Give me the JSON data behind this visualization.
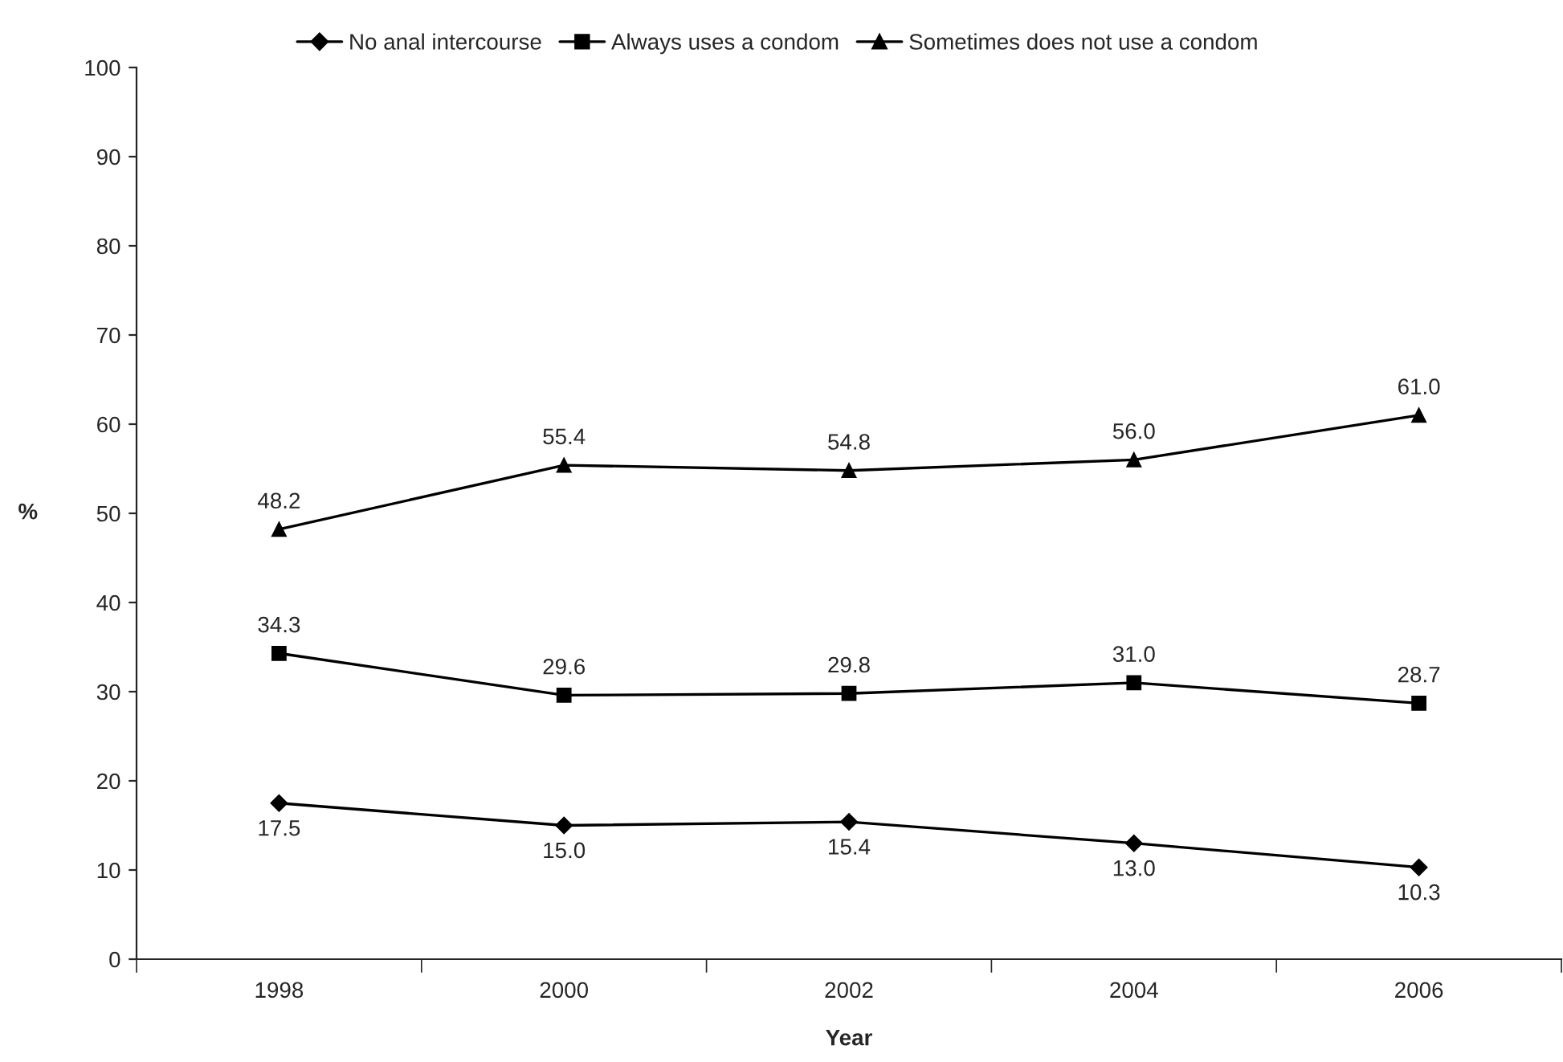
{
  "chart_data": {
    "type": "line",
    "xlabel": "Year",
    "ylabel": "%",
    "categories": [
      "1998",
      "2000",
      "2002",
      "2004",
      "2006"
    ],
    "series": [
      {
        "name": "No anal intercourse",
        "color": "#000000",
        "marker": "diamond",
        "values": [
          17.5,
          15.0,
          15.4,
          13.0,
          10.3
        ],
        "value_labels": [
          "17.5",
          "15.0",
          "15.4",
          "13.0",
          "10.3"
        ]
      },
      {
        "name": "Always uses a condom",
        "color": "#000000",
        "marker": "square",
        "values": [
          34.3,
          29.6,
          29.8,
          31.0,
          28.7
        ],
        "value_labels": [
          "34.3",
          "29.6",
          "29.8",
          "31.0",
          "28.7"
        ]
      },
      {
        "name": "Sometimes does not use a condom",
        "color": "#000000",
        "marker": "triangle",
        "values": [
          48.2,
          55.4,
          54.8,
          56.0,
          61.0
        ],
        "value_labels": [
          "48.2",
          "55.4",
          "54.8",
          "56.0",
          "61.0"
        ]
      }
    ],
    "ylim": [
      0,
      100
    ],
    "yticks": [
      0,
      10,
      20,
      30,
      40,
      50,
      60,
      70,
      80,
      90,
      100
    ],
    "grid": false,
    "legend": "top",
    "line_style": "solid"
  }
}
